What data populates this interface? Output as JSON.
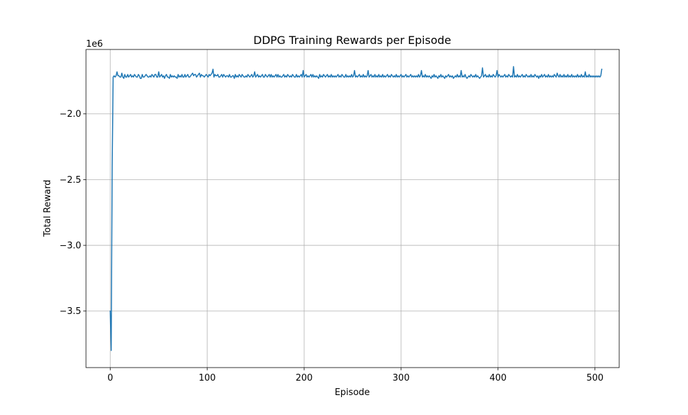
{
  "chart_data": {
    "type": "line",
    "title": "DDPG Training Rewards per Episode",
    "xlabel": "Episode",
    "ylabel": "Total Reward",
    "y_offset_label": "1e6",
    "y_scale": 1000000,
    "xlim": [
      -25,
      525
    ],
    "ylim": [
      -3.93,
      -1.51
    ],
    "x_ticks": [
      0,
      100,
      200,
      300,
      400,
      500
    ],
    "x_tick_labels": [
      "0",
      "100",
      "200",
      "300",
      "400",
      "500"
    ],
    "y_ticks": [
      -3.5,
      -3.0,
      -2.5,
      -2.0
    ],
    "y_tick_labels": [
      "−3.5",
      "−3.0",
      "−2.5",
      "−2.0"
    ],
    "grid": true,
    "line_color": "#1f77b4",
    "series": [
      {
        "x_start": 0,
        "x_step": 1,
        "values": [
          -3.5,
          -3.8,
          -2.4,
          -1.72,
          -1.71,
          -1.72,
          -1.71,
          -1.68,
          -1.71,
          -1.71,
          -1.72,
          -1.72,
          -1.69,
          -1.72,
          -1.73,
          -1.7,
          -1.72,
          -1.72,
          -1.7,
          -1.72,
          -1.71,
          -1.7,
          -1.72,
          -1.71,
          -1.72,
          -1.7,
          -1.71,
          -1.72,
          -1.72,
          -1.7,
          -1.71,
          -1.73,
          -1.73,
          -1.7,
          -1.72,
          -1.72,
          -1.71,
          -1.7,
          -1.71,
          -1.72,
          -1.72,
          -1.71,
          -1.72,
          -1.7,
          -1.71,
          -1.72,
          -1.7,
          -1.7,
          -1.72,
          -1.72,
          -1.68,
          -1.72,
          -1.71,
          -1.7,
          -1.72,
          -1.71,
          -1.73,
          -1.71,
          -1.7,
          -1.72,
          -1.72,
          -1.73,
          -1.7,
          -1.72,
          -1.71,
          -1.72,
          -1.71,
          -1.72,
          -1.72,
          -1.73,
          -1.7,
          -1.72,
          -1.71,
          -1.72,
          -1.7,
          -1.72,
          -1.72,
          -1.7,
          -1.72,
          -1.71,
          -1.7,
          -1.72,
          -1.72,
          -1.71,
          -1.7,
          -1.69,
          -1.71,
          -1.7,
          -1.7,
          -1.72,
          -1.71,
          -1.7,
          -1.69,
          -1.72,
          -1.7,
          -1.71,
          -1.71,
          -1.72,
          -1.71,
          -1.7,
          -1.71,
          -1.72,
          -1.7,
          -1.71,
          -1.7,
          -1.69,
          -1.66,
          -1.72,
          -1.7,
          -1.71,
          -1.71,
          -1.7,
          -1.72,
          -1.72,
          -1.71,
          -1.7,
          -1.72,
          -1.7,
          -1.71,
          -1.72,
          -1.71,
          -1.71,
          -1.72,
          -1.7,
          -1.72,
          -1.72,
          -1.71,
          -1.71,
          -1.73,
          -1.7,
          -1.72,
          -1.71,
          -1.72,
          -1.7,
          -1.71,
          -1.72,
          -1.7,
          -1.71,
          -1.72,
          -1.72,
          -1.71,
          -1.72,
          -1.7,
          -1.71,
          -1.72,
          -1.71,
          -1.7,
          -1.72,
          -1.71,
          -1.68,
          -1.72,
          -1.71,
          -1.7,
          -1.72,
          -1.71,
          -1.72,
          -1.71,
          -1.7,
          -1.72,
          -1.72,
          -1.7,
          -1.71,
          -1.72,
          -1.71,
          -1.7,
          -1.72,
          -1.7,
          -1.72,
          -1.71,
          -1.72,
          -1.71,
          -1.7,
          -1.72,
          -1.7,
          -1.72,
          -1.71,
          -1.72,
          -1.72,
          -1.71,
          -1.7,
          -1.72,
          -1.71,
          -1.72,
          -1.7,
          -1.71,
          -1.72,
          -1.71,
          -1.72,
          -1.7,
          -1.71,
          -1.72,
          -1.72,
          -1.7,
          -1.72,
          -1.71,
          -1.72,
          -1.71,
          -1.7,
          -1.72,
          -1.67,
          -1.72,
          -1.71,
          -1.7,
          -1.72,
          -1.71,
          -1.72,
          -1.71,
          -1.7,
          -1.72,
          -1.7,
          -1.72,
          -1.71,
          -1.72,
          -1.71,
          -1.72,
          -1.73,
          -1.7,
          -1.72,
          -1.71,
          -1.72,
          -1.7,
          -1.71,
          -1.72,
          -1.71,
          -1.7,
          -1.72,
          -1.71,
          -1.72,
          -1.7,
          -1.72,
          -1.71,
          -1.72,
          -1.71,
          -1.72,
          -1.71,
          -1.7,
          -1.72,
          -1.71,
          -1.72,
          -1.7,
          -1.71,
          -1.72,
          -1.72,
          -1.7,
          -1.72,
          -1.71,
          -1.72,
          -1.71,
          -1.72,
          -1.7,
          -1.72,
          -1.71,
          -1.67,
          -1.72,
          -1.71,
          -1.72,
          -1.71,
          -1.7,
          -1.72,
          -1.71,
          -1.72,
          -1.7,
          -1.72,
          -1.71,
          -1.72,
          -1.71,
          -1.67,
          -1.72,
          -1.71,
          -1.7,
          -1.72,
          -1.71,
          -1.72,
          -1.7,
          -1.72,
          -1.71,
          -1.72,
          -1.7,
          -1.72,
          -1.71,
          -1.72,
          -1.7,
          -1.72,
          -1.71,
          -1.72,
          -1.71,
          -1.7,
          -1.72,
          -1.71,
          -1.72,
          -1.7,
          -1.71,
          -1.72,
          -1.71,
          -1.72,
          -1.7,
          -1.72,
          -1.71,
          -1.72,
          -1.71,
          -1.7,
          -1.72,
          -1.71,
          -1.72,
          -1.71,
          -1.7,
          -1.72,
          -1.71,
          -1.72,
          -1.71,
          -1.7,
          -1.72,
          -1.71,
          -1.72,
          -1.71,
          -1.72,
          -1.71,
          -1.72,
          -1.7,
          -1.72,
          -1.71,
          -1.67,
          -1.72,
          -1.71,
          -1.72,
          -1.7,
          -1.72,
          -1.71,
          -1.72,
          -1.71,
          -1.72,
          -1.73,
          -1.71,
          -1.72,
          -1.7,
          -1.72,
          -1.71,
          -1.72,
          -1.73,
          -1.71,
          -1.72,
          -1.7,
          -1.72,
          -1.71,
          -1.72,
          -1.73,
          -1.71,
          -1.72,
          -1.71,
          -1.7,
          -1.72,
          -1.71,
          -1.72,
          -1.71,
          -1.73,
          -1.72,
          -1.71,
          -1.72,
          -1.7,
          -1.72,
          -1.71,
          -1.72,
          -1.67,
          -1.72,
          -1.71,
          -1.72,
          -1.7,
          -1.72,
          -1.73,
          -1.72,
          -1.71,
          -1.72,
          -1.7,
          -1.71,
          -1.72,
          -1.71,
          -1.72,
          -1.7,
          -1.72,
          -1.71,
          -1.72,
          -1.73,
          -1.72,
          -1.71,
          -1.65,
          -1.72,
          -1.71,
          -1.7,
          -1.72,
          -1.71,
          -1.72,
          -1.7,
          -1.72,
          -1.71,
          -1.72,
          -1.7,
          -1.71,
          -1.72,
          -1.71,
          -1.67,
          -1.72,
          -1.7,
          -1.71,
          -1.72,
          -1.71,
          -1.72,
          -1.71,
          -1.7,
          -1.72,
          -1.71,
          -1.72,
          -1.7,
          -1.71,
          -1.72,
          -1.71,
          -1.72,
          -1.64,
          -1.72,
          -1.71,
          -1.72,
          -1.7,
          -1.72,
          -1.71,
          -1.72,
          -1.71,
          -1.7,
          -1.72,
          -1.71,
          -1.72,
          -1.7,
          -1.71,
          -1.72,
          -1.71,
          -1.72,
          -1.7,
          -1.72,
          -1.71,
          -1.72,
          -1.7,
          -1.71,
          -1.72,
          -1.71,
          -1.73,
          -1.71,
          -1.72,
          -1.7,
          -1.72,
          -1.71,
          -1.7,
          -1.72,
          -1.71,
          -1.72,
          -1.7,
          -1.72,
          -1.71,
          -1.72,
          -1.71,
          -1.72,
          -1.7,
          -1.71,
          -1.72,
          -1.69,
          -1.71,
          -1.72,
          -1.7,
          -1.72,
          -1.71,
          -1.72,
          -1.7,
          -1.72,
          -1.71,
          -1.72,
          -1.7,
          -1.72,
          -1.71,
          -1.72,
          -1.7,
          -1.72,
          -1.71,
          -1.72,
          -1.71,
          -1.72,
          -1.7,
          -1.72,
          -1.71,
          -1.72,
          -1.7,
          -1.72,
          -1.71,
          -1.72,
          -1.68,
          -1.72,
          -1.71,
          -1.72,
          -1.7,
          -1.72,
          -1.71,
          -1.72,
          -1.71,
          -1.72,
          -1.71,
          -1.72,
          -1.71,
          -1.72,
          -1.71,
          -1.72,
          -1.71,
          -1.66
        ]
      }
    ]
  }
}
